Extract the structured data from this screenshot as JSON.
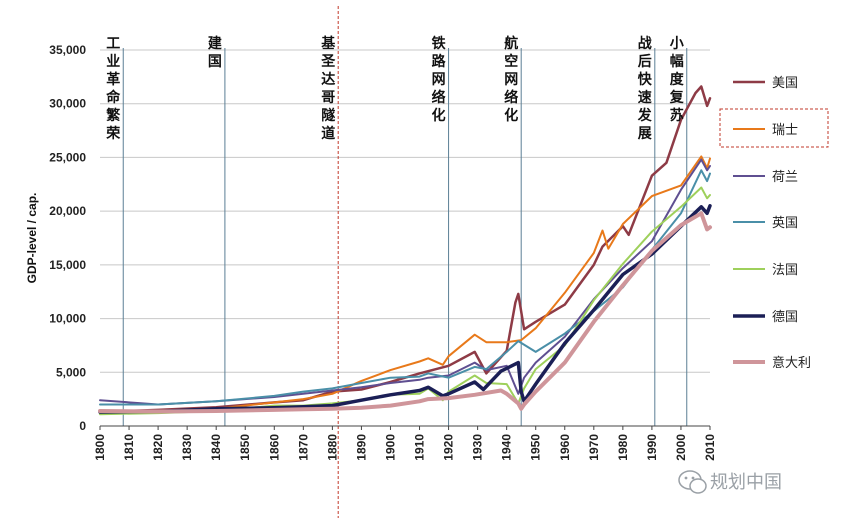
{
  "chart_data": {
    "type": "line",
    "ylabel": "GDP-level / cap.",
    "ylim": [
      0,
      35000
    ],
    "xlim": [
      1800,
      2010
    ],
    "y_ticks": [
      "0",
      "5,000",
      "10,000",
      "15,000",
      "20,000",
      "25,000",
      "30,000",
      "35,000"
    ],
    "y_tick_values": [
      0,
      5000,
      10000,
      15000,
      20000,
      25000,
      30000,
      35000
    ],
    "x_ticks": [
      "1800",
      "1810",
      "1820",
      "1830",
      "1840",
      "1850",
      "1860",
      "1870",
      "1880",
      "1890",
      "1900",
      "1910",
      "1920",
      "1930",
      "1940",
      "1950",
      "1960",
      "1970",
      "1980",
      "1990",
      "2000",
      "2010"
    ],
    "x_tick_values": [
      1800,
      1810,
      1820,
      1830,
      1840,
      1850,
      1860,
      1870,
      1880,
      1890,
      1900,
      1910,
      1920,
      1930,
      1940,
      1950,
      1960,
      1970,
      1980,
      1990,
      2000,
      2010
    ],
    "grid": "horizontal",
    "legend_position": "right",
    "annotations": [
      {
        "x": 1808,
        "text": "工业革命繁荣",
        "style": "solid"
      },
      {
        "x": 1843,
        "text": "建国",
        "style": "solid"
      },
      {
        "x": 1882,
        "text": "基圣达哥隧道",
        "style": "dashed-red"
      },
      {
        "x": 1920,
        "text": "铁路网络化",
        "style": "solid"
      },
      {
        "x": 1945,
        "text": "航空网络化",
        "style": "solid"
      },
      {
        "x": 1991,
        "text": "战后快速发展",
        "style": "solid"
      },
      {
        "x": 2002,
        "text": "小幅度复苏",
        "style": "solid"
      }
    ],
    "series": [
      {
        "name": "美国",
        "color": "#8e3b46",
        "width": 2.5,
        "x": [
          1800,
          1820,
          1840,
          1860,
          1870,
          1880,
          1890,
          1900,
          1910,
          1920,
          1929,
          1933,
          1940,
          1943,
          1944,
          1946,
          1950,
          1960,
          1970,
          1973,
          1980,
          1982,
          1990,
          1995,
          2000,
          2005,
          2007,
          2009,
          2010
        ],
        "y": [
          1300,
          1500,
          1750,
          2200,
          2400,
          3200,
          3400,
          4100,
          4900,
          5600,
          6900,
          4900,
          7000,
          11500,
          12300,
          9000,
          9700,
          11300,
          15000,
          16700,
          18600,
          17800,
          23300,
          24500,
          28500,
          31000,
          31600,
          29800,
          30500
        ]
      },
      {
        "name": "瑞士",
        "color": "#e8791a",
        "width": 2,
        "x": [
          1800,
          1820,
          1840,
          1860,
          1870,
          1880,
          1890,
          1900,
          1910,
          1913,
          1918,
          1920,
          1929,
          1933,
          1940,
          1945,
          1950,
          1960,
          1970,
          1973,
          1975,
          1980,
          1990,
          2000,
          2007,
          2009,
          2010
        ],
        "y": [
          1200,
          1350,
          1600,
          2200,
          2500,
          3000,
          4200,
          5200,
          6000,
          6300,
          5700,
          6500,
          8500,
          7800,
          7800,
          8000,
          9100,
          12400,
          16100,
          18200,
          16500,
          18800,
          21400,
          22400,
          25100,
          24000,
          24900
        ]
      },
      {
        "name": "荷兰",
        "color": "#5f4f91",
        "width": 2,
        "x": [
          1800,
          1820,
          1840,
          1860,
          1870,
          1880,
          1890,
          1900,
          1910,
          1913,
          1920,
          1929,
          1933,
          1940,
          1944,
          1946,
          1950,
          1960,
          1970,
          1980,
          1990,
          2000,
          2007,
          2009,
          2010
        ],
        "y": [
          2400,
          2000,
          2300,
          2700,
          3000,
          3300,
          3600,
          4000,
          4300,
          4500,
          4700,
          5900,
          5200,
          5600,
          3000,
          4500,
          5900,
          8300,
          11800,
          14700,
          17200,
          22000,
          24800,
          23800,
          24200
        ]
      },
      {
        "name": "英国",
        "color": "#4a8fa8",
        "width": 2,
        "x": [
          1800,
          1820,
          1840,
          1860,
          1870,
          1880,
          1890,
          1900,
          1910,
          1913,
          1920,
          1929,
          1933,
          1940,
          1944,
          1950,
          1960,
          1970,
          1980,
          1990,
          2000,
          2007,
          2009,
          2010
        ],
        "y": [
          2000,
          2000,
          2300,
          2800,
          3200,
          3500,
          4000,
          4500,
          4600,
          4900,
          4500,
          5500,
          5300,
          6900,
          7900,
          6900,
          8600,
          10700,
          12900,
          16400,
          19800,
          23800,
          22800,
          23500
        ]
      },
      {
        "name": "法国",
        "color": "#9ed05b",
        "width": 2,
        "x": [
          1800,
          1820,
          1840,
          1860,
          1870,
          1880,
          1890,
          1900,
          1910,
          1913,
          1918,
          1920,
          1929,
          1933,
          1940,
          1944,
          1946,
          1950,
          1960,
          1970,
          1980,
          1990,
          2000,
          2007,
          2009,
          2010
        ],
        "y": [
          1100,
          1200,
          1400,
          1900,
          1900,
          2100,
          2400,
          2900,
          3000,
          3500,
          2400,
          3200,
          4700,
          4000,
          3900,
          2100,
          3500,
          5300,
          7500,
          11700,
          15100,
          18100,
          20400,
          22200,
          21200,
          21500
        ]
      },
      {
        "name": "德国",
        "color": "#1b1f56",
        "width": 3.5,
        "x": [
          1800,
          1820,
          1840,
          1860,
          1870,
          1880,
          1890,
          1900,
          1910,
          1913,
          1918,
          1920,
          1929,
          1932,
          1938,
          1944,
          1945,
          1946,
          1950,
          1960,
          1970,
          1980,
          1990,
          2000,
          2007,
          2009,
          2010
        ],
        "y": [
          1300,
          1350,
          1600,
          1700,
          1800,
          1900,
          2400,
          2900,
          3300,
          3600,
          2800,
          3000,
          4100,
          3400,
          5100,
          5900,
          3200,
          2300,
          3900,
          7700,
          10800,
          14100,
          16000,
          18600,
          20400,
          19800,
          20500
        ]
      },
      {
        "name": "意大利",
        "color": "#cf959a",
        "width": 4,
        "x": [
          1800,
          1820,
          1840,
          1860,
          1870,
          1880,
          1890,
          1900,
          1910,
          1913,
          1920,
          1929,
          1938,
          1940,
          1944,
          1945,
          1946,
          1950,
          1960,
          1970,
          1980,
          1990,
          2000,
          2007,
          2009,
          2010
        ],
        "y": [
          1400,
          1350,
          1400,
          1500,
          1550,
          1600,
          1700,
          1900,
          2300,
          2500,
          2600,
          2900,
          3300,
          3000,
          2100,
          1600,
          2000,
          3200,
          5900,
          9700,
          13100,
          16300,
          18700,
          19800,
          18300,
          18500
        ]
      }
    ]
  },
  "watermark": "规划中国"
}
